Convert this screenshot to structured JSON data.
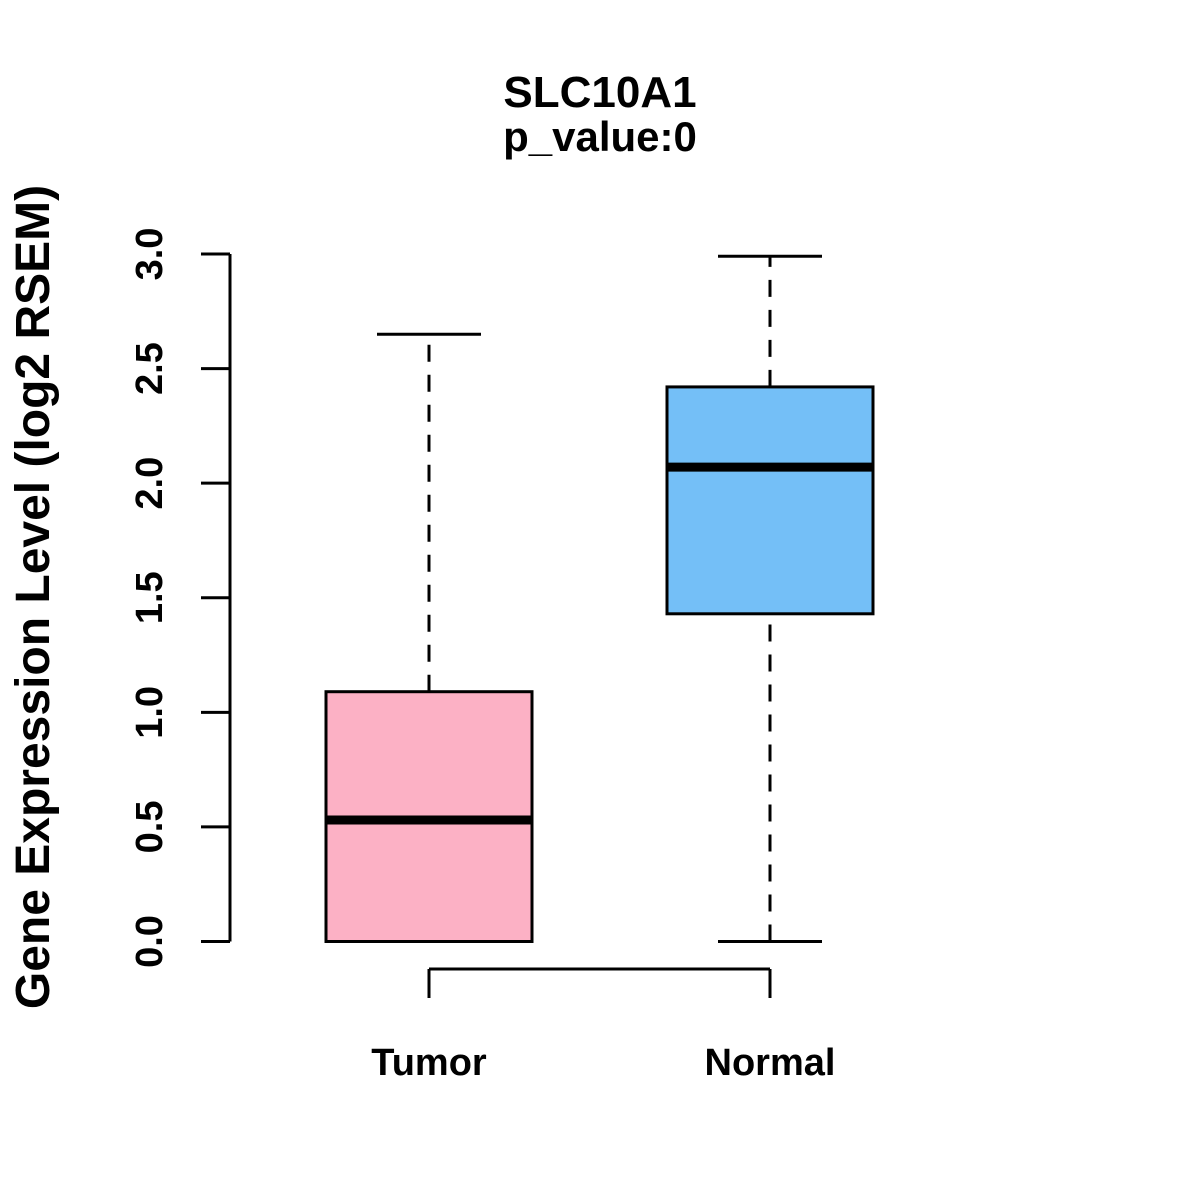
{
  "chart_data": {
    "type": "boxplot",
    "title": "SLC10A1",
    "subtitle": "p_value:0",
    "ylabel": "Gene Expression Level (log2 RSEM)",
    "categories": [
      "Tumor",
      "Normal"
    ],
    "ylim": [
      0.0,
      3.0
    ],
    "yticks": [
      "0.0",
      "0.5",
      "1.0",
      "1.5",
      "2.0",
      "2.5",
      "3.0"
    ],
    "series": [
      {
        "name": "Tumor",
        "min": 0.0,
        "q1": 0.0,
        "median": 0.53,
        "q3": 1.09,
        "max": 2.65,
        "fill": "#FCB1C5"
      },
      {
        "name": "Normal",
        "min": 0.0,
        "q1": 1.43,
        "median": 2.07,
        "q3": 2.42,
        "max": 2.99,
        "fill": "#74BFF7"
      }
    ],
    "line_color": "#000000",
    "whisker_style": "dashed",
    "grid": false,
    "legend": "none"
  }
}
